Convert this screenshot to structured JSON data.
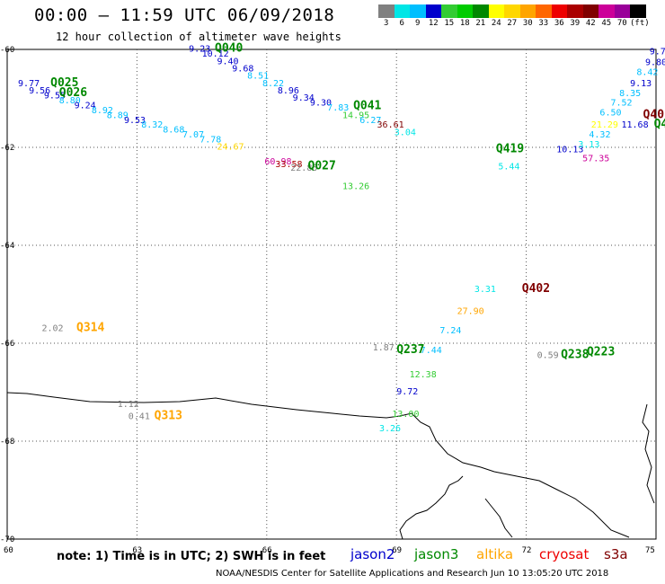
{
  "title": "00:00 – 11:59 UTC 06/09/2018",
  "subtitle": "12 hour collection of altimeter wave heights",
  "colorbar": {
    "labels": [
      "3",
      "6",
      "9",
      "12",
      "15",
      "18",
      "21",
      "24",
      "27",
      "30",
      "33",
      "36",
      "39",
      "42",
      "45",
      "70",
      "(ft)"
    ],
    "colors": [
      "#808080",
      "#00e6e6",
      "#00bfff",
      "#0000cc",
      "#33cc33",
      "#00cc00",
      "#008800",
      "#ffff00",
      "#ffd700",
      "#ffa500",
      "#ff6600",
      "#ee0000",
      "#aa0000",
      "#800000",
      "#cc0099",
      "#990099",
      "#000000"
    ]
  },
  "axes": {
    "lat_labels": [
      "-60",
      "-62",
      "-64",
      "-66",
      "-68",
      "-70"
    ],
    "lon_labels": [
      "60",
      "63",
      "66",
      "69",
      "72",
      "75"
    ],
    "lat_range": [
      -70,
      -60
    ],
    "lon_range": [
      60,
      75
    ],
    "grid": "dotted"
  },
  "track_labels": [
    {
      "text": "Q025",
      "lon": 61.0,
      "lat": -60.75,
      "color": "#008800"
    },
    {
      "text": "Q026",
      "lon": 61.2,
      "lat": -60.95,
      "color": "#008800"
    },
    {
      "text": "Q040",
      "lon": 64.8,
      "lat": -60.05,
      "color": "#008800"
    },
    {
      "text": "Q041",
      "lon": 68.0,
      "lat": -61.22,
      "color": "#008800"
    },
    {
      "text": "Q027",
      "lon": 66.95,
      "lat": -62.45,
      "color": "#008800"
    },
    {
      "text": "Q419",
      "lon": 71.3,
      "lat": -62.1,
      "color": "#008800"
    },
    {
      "text": "Q402",
      "lon": 71.9,
      "lat": -64.95,
      "color": "#800000"
    },
    {
      "text": "Q314",
      "lon": 61.6,
      "lat": -65.75,
      "color": "#ffa500"
    },
    {
      "text": "Q237",
      "lon": 69.0,
      "lat": -66.2,
      "color": "#008800"
    },
    {
      "text": "Q238",
      "lon": 72.8,
      "lat": -66.3,
      "color": "#008800"
    },
    {
      "text": "Q223",
      "lon": 73.4,
      "lat": -66.25,
      "color": "#008800"
    },
    {
      "text": "Q313",
      "lon": 63.4,
      "lat": -67.55,
      "color": "#ffa500"
    },
    {
      "text": "Q40",
      "lon": 74.7,
      "lat": -61.4,
      "color": "#800000"
    },
    {
      "text": "Q4",
      "lon": 74.95,
      "lat": -61.6,
      "color": "#008800"
    }
  ],
  "values": [
    {
      "text": "9.77",
      "lon": 60.25,
      "lat": -60.75,
      "color": "#0000cc"
    },
    {
      "text": "9.56",
      "lon": 60.5,
      "lat": -60.9,
      "color": "#0000cc"
    },
    {
      "text": "9.55",
      "lon": 60.85,
      "lat": -61.0,
      "color": "#0000cc"
    },
    {
      "text": "8.80",
      "lon": 61.2,
      "lat": -61.1,
      "color": "#00bfff"
    },
    {
      "text": "9.24",
      "lon": 61.55,
      "lat": -61.2,
      "color": "#0000cc"
    },
    {
      "text": "8.92",
      "lon": 61.95,
      "lat": -61.3,
      "color": "#00bfff"
    },
    {
      "text": "8.89",
      "lon": 62.3,
      "lat": -61.4,
      "color": "#00bfff"
    },
    {
      "text": "9.53",
      "lon": 62.7,
      "lat": -61.5,
      "color": "#0000cc"
    },
    {
      "text": "8.32",
      "lon": 63.1,
      "lat": -61.6,
      "color": "#00bfff"
    },
    {
      "text": "8.68",
      "lon": 63.6,
      "lat": -61.7,
      "color": "#00bfff"
    },
    {
      "text": "7.07",
      "lon": 64.05,
      "lat": -61.8,
      "color": "#00bfff"
    },
    {
      "text": "7.78",
      "lon": 64.45,
      "lat": -61.9,
      "color": "#00bfff"
    },
    {
      "text": "24.67",
      "lon": 64.85,
      "lat": -62.05,
      "color": "#ffd700"
    },
    {
      "text": "9.23",
      "lon": 64.2,
      "lat": -60.05,
      "color": "#0000cc"
    },
    {
      "text": "10.12",
      "lon": 64.5,
      "lat": -60.15,
      "color": "#0000cc"
    },
    {
      "text": "9.40",
      "lon": 64.85,
      "lat": -60.3,
      "color": "#0000cc"
    },
    {
      "text": "9.68",
      "lon": 65.2,
      "lat": -60.45,
      "color": "#0000cc"
    },
    {
      "text": "8.51",
      "lon": 65.55,
      "lat": -60.6,
      "color": "#00bfff"
    },
    {
      "text": "8.22",
      "lon": 65.9,
      "lat": -60.75,
      "color": "#00bfff"
    },
    {
      "text": "8.96",
      "lon": 66.25,
      "lat": -60.9,
      "color": "#0000cc"
    },
    {
      "text": "9.34",
      "lon": 66.6,
      "lat": -61.05,
      "color": "#0000cc"
    },
    {
      "text": "9.30",
      "lon": 67.0,
      "lat": -61.15,
      "color": "#0000cc"
    },
    {
      "text": "7.83",
      "lon": 67.4,
      "lat": -61.25,
      "color": "#00bfff"
    },
    {
      "text": "14.95",
      "lon": 67.75,
      "lat": -61.4,
      "color": "#33cc33"
    },
    {
      "text": "6.27",
      "lon": 68.15,
      "lat": -61.5,
      "color": "#00bfff"
    },
    {
      "text": "36.61",
      "lon": 68.55,
      "lat": -61.6,
      "color": "#800000"
    },
    {
      "text": "3.04",
      "lon": 68.95,
      "lat": -61.75,
      "color": "#00e6e6"
    },
    {
      "text": "60.98",
      "lon": 65.95,
      "lat": -62.35,
      "color": "#cc0099"
    },
    {
      "text": "33.58",
      "lon": 66.2,
      "lat": -62.4,
      "color": "#aa0000"
    },
    {
      "text": "22.85",
      "lon": 66.55,
      "lat": -62.48,
      "color": "#808080"
    },
    {
      "text": "13.26",
      "lon": 67.75,
      "lat": -62.85,
      "color": "#33cc33"
    },
    {
      "text": "5.44",
      "lon": 71.35,
      "lat": -62.45,
      "color": "#00e6e6"
    },
    {
      "text": "10.13",
      "lon": 72.7,
      "lat": -62.1,
      "color": "#0000cc"
    },
    {
      "text": "57.35",
      "lon": 73.3,
      "lat": -62.28,
      "color": "#cc0099"
    },
    {
      "text": "9.7",
      "lon": 74.85,
      "lat": -60.1,
      "color": "#0000cc"
    },
    {
      "text": "9.80",
      "lon": 74.75,
      "lat": -60.32,
      "color": "#0000cc"
    },
    {
      "text": "8.42",
      "lon": 74.55,
      "lat": -60.52,
      "color": "#00bfff"
    },
    {
      "text": "9.13",
      "lon": 74.4,
      "lat": -60.75,
      "color": "#0000cc"
    },
    {
      "text": "8.35",
      "lon": 74.15,
      "lat": -60.95,
      "color": "#00bfff"
    },
    {
      "text": "7.52",
      "lon": 73.95,
      "lat": -61.15,
      "color": "#00bfff"
    },
    {
      "text": "6.50",
      "lon": 73.7,
      "lat": -61.35,
      "color": "#00bfff"
    },
    {
      "text": "21.29",
      "lon": 73.5,
      "lat": -61.6,
      "color": "#ffff00"
    },
    {
      "text": "11.68",
      "lon": 74.2,
      "lat": -61.6,
      "color": "#0000cc"
    },
    {
      "text": "4.32",
      "lon": 73.45,
      "lat": -61.8,
      "color": "#00bfff"
    },
    {
      "text": "3.13",
      "lon": 73.2,
      "lat": -62.0,
      "color": "#00e6e6"
    },
    {
      "text": "3.31",
      "lon": 70.8,
      "lat": -64.95,
      "color": "#00e6e6"
    },
    {
      "text": "27.90",
      "lon": 70.4,
      "lat": -65.4,
      "color": "#ffa500"
    },
    {
      "text": "7.24",
      "lon": 70.0,
      "lat": -65.8,
      "color": "#00bfff"
    },
    {
      "text": "7.44",
      "lon": 69.55,
      "lat": -66.2,
      "color": "#00bfff"
    },
    {
      "text": "12.38",
      "lon": 69.3,
      "lat": -66.7,
      "color": "#33cc33"
    },
    {
      "text": "9.72",
      "lon": 69.0,
      "lat": -67.05,
      "color": "#0000cc"
    },
    {
      "text": "13.00",
      "lon": 68.9,
      "lat": -67.5,
      "color": "#33cc33"
    },
    {
      "text": "3.26",
      "lon": 68.6,
      "lat": -67.8,
      "color": "#00e6e6"
    },
    {
      "text": "1.87",
      "lon": 68.45,
      "lat": -66.15,
      "color": "#808080"
    },
    {
      "text": "0.59",
      "lon": 72.25,
      "lat": -66.3,
      "color": "#808080"
    },
    {
      "text": "2.02",
      "lon": 60.8,
      "lat": -65.75,
      "color": "#808080"
    },
    {
      "text": "1.12",
      "lon": 62.55,
      "lat": -67.3,
      "color": "#808080"
    },
    {
      "text": "0.41",
      "lon": 62.8,
      "lat": -67.55,
      "color": "#808080"
    }
  ],
  "note": "note: 1) Time is in UTC; 2) SWH is in feet",
  "satellites": [
    {
      "name": "jason2",
      "color": "#0000cc"
    },
    {
      "name": "jason3",
      "color": "#008800"
    },
    {
      "name": "altika",
      "color": "#ffa500"
    },
    {
      "name": "cryosat",
      "color": "#ee0000"
    },
    {
      "name": "s3a",
      "color": "#800000"
    }
  ],
  "credit": "NOAA/NESDIS Center for Satellite Applications and Research   Jun 10 13:05:20 UTC 2018"
}
